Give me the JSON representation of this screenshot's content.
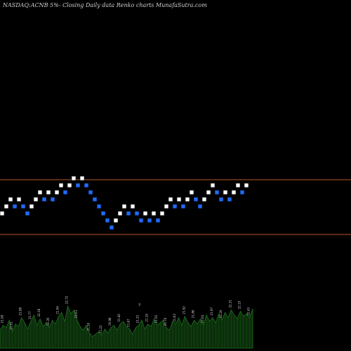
{
  "header": {
    "title": "NASDAQ:ACNB 5%-  Closing Daily data  Renko  charts MunafaSutra.com"
  },
  "chart_data": {
    "type": "renko",
    "brick_size_label": "5%",
    "price_min": 16.5,
    "price_max": 28.0,
    "reference_lines": [
      {
        "name": "upper",
        "value": 22.1
      },
      {
        "name": "lower",
        "value": 20.15
      }
    ],
    "bricks": [
      {
        "price": 20.9,
        "dir": "up"
      },
      {
        "price": 21.15,
        "dir": "up"
      },
      {
        "price": 21.4,
        "dir": "up"
      },
      {
        "price": 21.15,
        "dir": "down"
      },
      {
        "price": 21.4,
        "dir": "up"
      },
      {
        "price": 21.15,
        "dir": "down"
      },
      {
        "price": 20.9,
        "dir": "down"
      },
      {
        "price": 21.15,
        "dir": "up"
      },
      {
        "price": 21.4,
        "dir": "up"
      },
      {
        "price": 21.65,
        "dir": "up"
      },
      {
        "price": 21.4,
        "dir": "down"
      },
      {
        "price": 21.65,
        "dir": "up"
      },
      {
        "price": 21.4,
        "dir": "down"
      },
      {
        "price": 21.65,
        "dir": "up"
      },
      {
        "price": 21.9,
        "dir": "up"
      },
      {
        "price": 21.65,
        "dir": "down"
      },
      {
        "price": 21.9,
        "dir": "up"
      },
      {
        "price": 22.15,
        "dir": "up"
      },
      {
        "price": 21.9,
        "dir": "down"
      },
      {
        "price": 22.15,
        "dir": "up"
      },
      {
        "price": 21.9,
        "dir": "down"
      },
      {
        "price": 21.65,
        "dir": "down"
      },
      {
        "price": 21.4,
        "dir": "down"
      },
      {
        "price": 21.15,
        "dir": "down"
      },
      {
        "price": 20.9,
        "dir": "down"
      },
      {
        "price": 20.65,
        "dir": "down"
      },
      {
        "price": 20.4,
        "dir": "down"
      },
      {
        "price": 20.65,
        "dir": "up"
      },
      {
        "price": 20.9,
        "dir": "up"
      },
      {
        "price": 21.15,
        "dir": "up"
      },
      {
        "price": 20.9,
        "dir": "down"
      },
      {
        "price": 21.15,
        "dir": "up"
      },
      {
        "price": 20.9,
        "dir": "down"
      },
      {
        "price": 20.65,
        "dir": "down"
      },
      {
        "price": 20.9,
        "dir": "up"
      },
      {
        "price": 20.65,
        "dir": "down"
      },
      {
        "price": 20.9,
        "dir": "up"
      },
      {
        "price": 20.65,
        "dir": "down"
      },
      {
        "price": 20.9,
        "dir": "up"
      },
      {
        "price": 21.15,
        "dir": "up"
      },
      {
        "price": 21.4,
        "dir": "up"
      },
      {
        "price": 21.15,
        "dir": "down"
      },
      {
        "price": 21.4,
        "dir": "up"
      },
      {
        "price": 21.15,
        "dir": "down"
      },
      {
        "price": 21.4,
        "dir": "up"
      },
      {
        "price": 21.65,
        "dir": "up"
      },
      {
        "price": 21.4,
        "dir": "down"
      },
      {
        "price": 21.15,
        "dir": "down"
      },
      {
        "price": 21.4,
        "dir": "up"
      },
      {
        "price": 21.65,
        "dir": "up"
      },
      {
        "price": 21.9,
        "dir": "up"
      },
      {
        "price": 21.65,
        "dir": "down"
      },
      {
        "price": 21.4,
        "dir": "down"
      },
      {
        "price": 21.65,
        "dir": "up"
      },
      {
        "price": 21.4,
        "dir": "down"
      },
      {
        "price": 21.65,
        "dir": "up"
      },
      {
        "price": 21.9,
        "dir": "up"
      },
      {
        "price": 21.65,
        "dir": "down"
      },
      {
        "price": 21.9,
        "dir": "up"
      }
    ],
    "volume": {
      "values": [
        14,
        18,
        16,
        22,
        13,
        19,
        17,
        24,
        20,
        15,
        21,
        26,
        18,
        23,
        17,
        20,
        16,
        22,
        19,
        25,
        28,
        21,
        33,
        27,
        30,
        22,
        17,
        14,
        18,
        12,
        9,
        11,
        13,
        10,
        15,
        12,
        16,
        18,
        14,
        19,
        21,
        17,
        15,
        11,
        16,
        18,
        22,
        15,
        19,
        17,
        23,
        18,
        20,
        22,
        16,
        14,
        21,
        19,
        24,
        18,
        25,
        20,
        17,
        22,
        19,
        23,
        18,
        26,
        21,
        24,
        20,
        27,
        22,
        28,
        24,
        30,
        26,
        23,
        29,
        25,
        27,
        24,
        31
      ],
      "labels": [
        {
          "text": "21.58",
          "bar": 1
        },
        {
          "text": "21.51",
          "bar": 4
        },
        {
          "text": "21.88",
          "bar": 7
        },
        {
          "text": "21.77",
          "bar": 10
        },
        {
          "text": "22.18",
          "bar": 13
        },
        {
          "text": "22.35",
          "bar": 16
        },
        {
          "text": "21.94",
          "bar": 19
        },
        {
          "text": "22.72",
          "bar": 22
        },
        {
          "text": "22.61",
          "bar": 25
        },
        {
          "text": "21.50",
          "bar": 29
        },
        {
          "text": "21.22",
          "bar": 33
        },
        {
          "text": "20.98",
          "bar": 36
        },
        {
          "text": "21.40",
          "bar": 39
        },
        {
          "text": "21.67",
          "bar": 42
        },
        {
          "text": "21.33",
          "bar": 45
        },
        {
          "text": "21.19",
          "bar": 48
        },
        {
          "text": "21.55",
          "bar": 51
        },
        {
          "text": "21.74",
          "bar": 54
        },
        {
          "text": "21.63",
          "bar": 57
        },
        {
          "text": "21.92",
          "bar": 60
        },
        {
          "text": "21.86",
          "bar": 63
        },
        {
          "text": "22.04",
          "bar": 66
        },
        {
          "text": "21.97",
          "bar": 69
        },
        {
          "text": "22.20",
          "bar": 72
        },
        {
          "text": "22.31",
          "bar": 75
        },
        {
          "text": "22.15",
          "bar": 78
        },
        {
          "text": "22.43",
          "bar": 81
        }
      ],
      "marker": {
        "text": "S",
        "bar": 45
      }
    },
    "colors": {
      "background": "#000000",
      "up_brick": "#ffffff",
      "down_brick": "#1e6bff",
      "reference_line": "#b4582a",
      "volume_fill": "#0b2e0b",
      "volume_stroke": "#1f6e1f"
    }
  }
}
